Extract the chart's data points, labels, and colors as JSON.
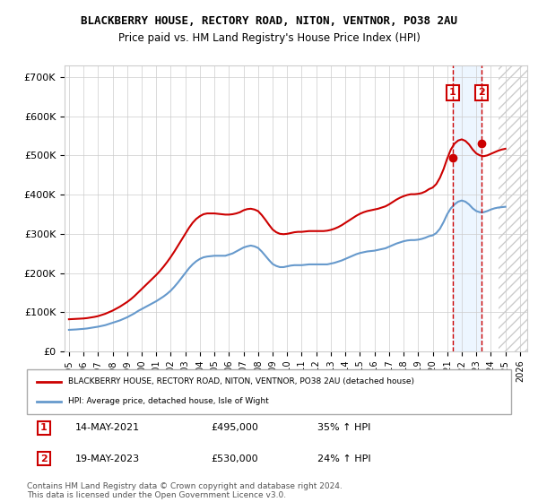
{
  "title": "BLACKBERRY HOUSE, RECTORY ROAD, NITON, VENTNOR, PO38 2AU",
  "subtitle": "Price paid vs. HM Land Registry's House Price Index (HPI)",
  "ylabel": "",
  "xlim_start": 1995.0,
  "xlim_end": 2026.5,
  "ylim": [
    0,
    730000
  ],
  "yticks": [
    0,
    100000,
    200000,
    300000,
    400000,
    500000,
    600000,
    700000
  ],
  "ytick_labels": [
    "£0",
    "£100K",
    "£200K",
    "£300K",
    "£400K",
    "£500K",
    "£600K",
    "£700K"
  ],
  "xticks": [
    1995,
    1996,
    1997,
    1998,
    1999,
    2000,
    2001,
    2002,
    2003,
    2004,
    2005,
    2006,
    2007,
    2008,
    2009,
    2010,
    2011,
    2012,
    2013,
    2014,
    2015,
    2016,
    2017,
    2018,
    2019,
    2020,
    2021,
    2022,
    2023,
    2024,
    2025,
    2026
  ],
  "sale1_x": 2021.37,
  "sale1_y": 495000,
  "sale1_label": "1",
  "sale2_x": 2023.37,
  "sale2_y": 530000,
  "sale2_label": "2",
  "legend_line1": "BLACKBERRY HOUSE, RECTORY ROAD, NITON, VENTNOR, PO38 2AU (detached house)",
  "legend_line2": "HPI: Average price, detached house, Isle of Wight",
  "table_row1": [
    "1",
    "14-MAY-2021",
    "£495,000",
    "35% ↑ HPI"
  ],
  "table_row2": [
    "2",
    "19-MAY-2023",
    "£530,000",
    "24% ↑ HPI"
  ],
  "footer": "Contains HM Land Registry data © Crown copyright and database right 2024.\nThis data is licensed under the Open Government Licence v3.0.",
  "red_color": "#cc0000",
  "blue_color": "#6699cc",
  "hpi_years": [
    1995.0,
    1995.25,
    1995.5,
    1995.75,
    1996.0,
    1996.25,
    1996.5,
    1996.75,
    1997.0,
    1997.25,
    1997.5,
    1997.75,
    1998.0,
    1998.25,
    1998.5,
    1998.75,
    1999.0,
    1999.25,
    1999.5,
    1999.75,
    2000.0,
    2000.25,
    2000.5,
    2000.75,
    2001.0,
    2001.25,
    2001.5,
    2001.75,
    2002.0,
    2002.25,
    2002.5,
    2002.75,
    2003.0,
    2003.25,
    2003.5,
    2003.75,
    2004.0,
    2004.25,
    2004.5,
    2004.75,
    2005.0,
    2005.25,
    2005.5,
    2005.75,
    2006.0,
    2006.25,
    2006.5,
    2006.75,
    2007.0,
    2007.25,
    2007.5,
    2007.75,
    2008.0,
    2008.25,
    2008.5,
    2008.75,
    2009.0,
    2009.25,
    2009.5,
    2009.75,
    2010.0,
    2010.25,
    2010.5,
    2010.75,
    2011.0,
    2011.25,
    2011.5,
    2011.75,
    2012.0,
    2012.25,
    2012.5,
    2012.75,
    2013.0,
    2013.25,
    2013.5,
    2013.75,
    2014.0,
    2014.25,
    2014.5,
    2014.75,
    2015.0,
    2015.25,
    2015.5,
    2015.75,
    2016.0,
    2016.25,
    2016.5,
    2016.75,
    2017.0,
    2017.25,
    2017.5,
    2017.75,
    2018.0,
    2018.25,
    2018.5,
    2018.75,
    2019.0,
    2019.25,
    2019.5,
    2019.75,
    2020.0,
    2020.25,
    2020.5,
    2020.75,
    2021.0,
    2021.25,
    2021.5,
    2021.75,
    2022.0,
    2022.25,
    2022.5,
    2022.75,
    2023.0,
    2023.25,
    2023.5,
    2023.75,
    2024.0,
    2024.25,
    2024.5,
    2024.75,
    2025.0
  ],
  "hpi_values": [
    55000,
    55500,
    56000,
    56800,
    57500,
    58500,
    60000,
    61500,
    63000,
    65000,
    67000,
    70000,
    73000,
    76000,
    79000,
    83000,
    87000,
    92000,
    97000,
    103000,
    108000,
    113000,
    118000,
    123000,
    128000,
    134000,
    140000,
    147000,
    155000,
    165000,
    176000,
    188000,
    200000,
    212000,
    222000,
    230000,
    236000,
    240000,
    242000,
    243000,
    244000,
    244000,
    244000,
    244000,
    247000,
    250000,
    255000,
    260000,
    265000,
    268000,
    270000,
    268000,
    264000,
    255000,
    244000,
    233000,
    223000,
    218000,
    215000,
    215000,
    217000,
    219000,
    220000,
    220000,
    220000,
    221000,
    222000,
    222000,
    222000,
    222000,
    222000,
    222000,
    224000,
    226000,
    229000,
    232000,
    236000,
    240000,
    244000,
    248000,
    251000,
    253000,
    255000,
    256000,
    257000,
    259000,
    261000,
    263000,
    267000,
    271000,
    275000,
    278000,
    281000,
    283000,
    284000,
    284000,
    285000,
    287000,
    290000,
    294000,
    296000,
    302000,
    313000,
    330000,
    350000,
    365000,
    375000,
    382000,
    385000,
    382000,
    375000,
    365000,
    358000,
    355000,
    355000,
    358000,
    362000,
    365000,
    367000,
    368000,
    369000
  ],
  "price_years": [
    1995.0,
    1995.25,
    1995.5,
    1995.75,
    1996.0,
    1996.25,
    1996.5,
    1996.75,
    1997.0,
    1997.25,
    1997.5,
    1997.75,
    1998.0,
    1998.25,
    1998.5,
    1998.75,
    1999.0,
    1999.25,
    1999.5,
    1999.75,
    2000.0,
    2000.25,
    2000.5,
    2000.75,
    2001.0,
    2001.25,
    2001.5,
    2001.75,
    2002.0,
    2002.25,
    2002.5,
    2002.75,
    2003.0,
    2003.25,
    2003.5,
    2003.75,
    2004.0,
    2004.25,
    2004.5,
    2004.75,
    2005.0,
    2005.25,
    2005.5,
    2005.75,
    2006.0,
    2006.25,
    2006.5,
    2006.75,
    2007.0,
    2007.25,
    2007.5,
    2007.75,
    2008.0,
    2008.25,
    2008.5,
    2008.75,
    2009.0,
    2009.25,
    2009.5,
    2009.75,
    2010.0,
    2010.25,
    2010.5,
    2010.75,
    2011.0,
    2011.25,
    2011.5,
    2011.75,
    2012.0,
    2012.25,
    2012.5,
    2012.75,
    2013.0,
    2013.25,
    2013.5,
    2013.75,
    2014.0,
    2014.25,
    2014.5,
    2014.75,
    2015.0,
    2015.25,
    2015.5,
    2015.75,
    2016.0,
    2016.25,
    2016.5,
    2016.75,
    2017.0,
    2017.25,
    2017.5,
    2017.75,
    2018.0,
    2018.25,
    2018.5,
    2018.75,
    2019.0,
    2019.25,
    2019.5,
    2019.75,
    2020.0,
    2020.25,
    2020.5,
    2020.75,
    2021.0,
    2021.25,
    2021.5,
    2021.75,
    2022.0,
    2022.25,
    2022.5,
    2022.75,
    2023.0,
    2023.25,
    2023.5,
    2023.75,
    2024.0,
    2024.25,
    2024.5,
    2024.75,
    2025.0
  ],
  "price_values": [
    82000,
    82500,
    83000,
    83500,
    84000,
    85000,
    86500,
    88000,
    90000,
    93000,
    96000,
    100000,
    104000,
    109000,
    114000,
    120000,
    126000,
    133000,
    141000,
    150000,
    159000,
    168000,
    177000,
    186000,
    195000,
    205000,
    216000,
    228000,
    241000,
    255000,
    270000,
    285000,
    300000,
    315000,
    328000,
    338000,
    345000,
    350000,
    352000,
    352000,
    352000,
    351000,
    350000,
    349000,
    349000,
    350000,
    352000,
    355000,
    360000,
    363000,
    364000,
    362000,
    358000,
    348000,
    336000,
    323000,
    311000,
    304000,
    300000,
    299000,
    300000,
    302000,
    304000,
    305000,
    305000,
    306000,
    307000,
    307000,
    307000,
    307000,
    307000,
    308000,
    310000,
    313000,
    317000,
    322000,
    328000,
    334000,
    340000,
    346000,
    351000,
    355000,
    358000,
    360000,
    362000,
    364000,
    367000,
    370000,
    375000,
    381000,
    387000,
    392000,
    396000,
    399000,
    401000,
    401000,
    402000,
    404000,
    408000,
    414000,
    418000,
    427000,
    443000,
    465000,
    492000,
    515000,
    530000,
    538000,
    541000,
    537000,
    528000,
    515000,
    505000,
    500000,
    498000,
    500000,
    504000,
    508000,
    512000,
    515000,
    517000
  ],
  "hatch_start": 2024.5,
  "shade_color": "#ddeeff"
}
